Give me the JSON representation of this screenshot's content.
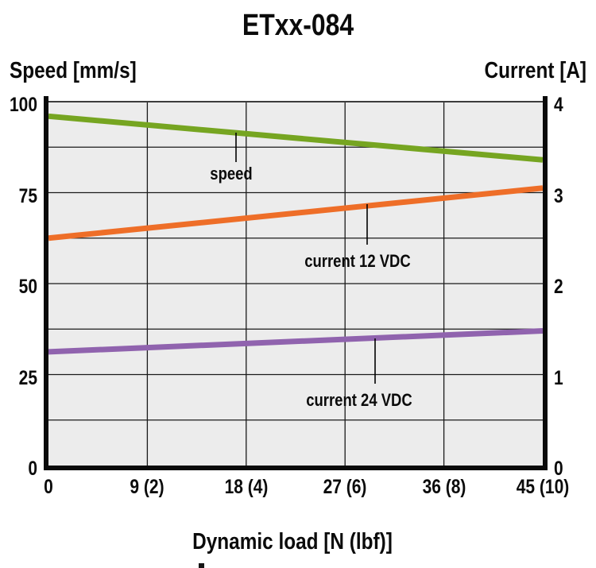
{
  "title": "ETxx-084",
  "axes": {
    "left": {
      "label": "Speed [mm/s]",
      "ticks": [
        "100",
        "75",
        "50",
        "25",
        "0"
      ]
    },
    "right": {
      "label": "Current [A]",
      "ticks": [
        "4",
        "3",
        "2",
        "1",
        "0"
      ]
    },
    "x": {
      "label": "Dynamic load [N (lbf)]",
      "ticks": [
        "0",
        "9 (2)",
        "18 (4)",
        "27 (6)",
        "36 (8)",
        "45 (10)"
      ]
    }
  },
  "colors": {
    "speed_line": "#76a521",
    "current12_line": "#ee6e28",
    "current24_line": "#9063ae",
    "plot_background": "#ececec",
    "gridline": "#1a1a1a",
    "frame": "#0a0a0a",
    "text": "#0b0b0b"
  },
  "chart_data": {
    "type": "line",
    "title": "ETxx-084",
    "xlabel": "Dynamic load [N (lbf)]",
    "x_axis": {
      "min": 0,
      "max": 45,
      "ticks_N": [
        0,
        9,
        18,
        27,
        36,
        45
      ],
      "ticks_lbf": [
        0,
        2,
        4,
        6,
        8,
        10
      ]
    },
    "left_axis": {
      "label": "Speed [mm/s]",
      "min": 0,
      "max": 100,
      "tick_step": 25,
      "grid_step": 12.5
    },
    "right_axis": {
      "label": "Current [A]",
      "min": 0,
      "max": 4,
      "tick_step": 1,
      "grid_step": 0.5
    },
    "grid": true,
    "legend": "inline-annotations",
    "series": [
      {
        "name": "speed",
        "axis": "left",
        "unit": "mm/s",
        "color": "#76a521",
        "x": [
          0,
          45
        ],
        "values": [
          96,
          84
        ]
      },
      {
        "name": "current 12 VDC",
        "axis": "right",
        "unit": "A",
        "color": "#ee6e28",
        "x": [
          0,
          45
        ],
        "values": [
          2.5,
          3.05
        ]
      },
      {
        "name": "current 24 VDC",
        "axis": "right",
        "unit": "A",
        "color": "#9063ae",
        "x": [
          0,
          45
        ],
        "values": [
          1.25,
          1.48
        ]
      }
    ]
  }
}
